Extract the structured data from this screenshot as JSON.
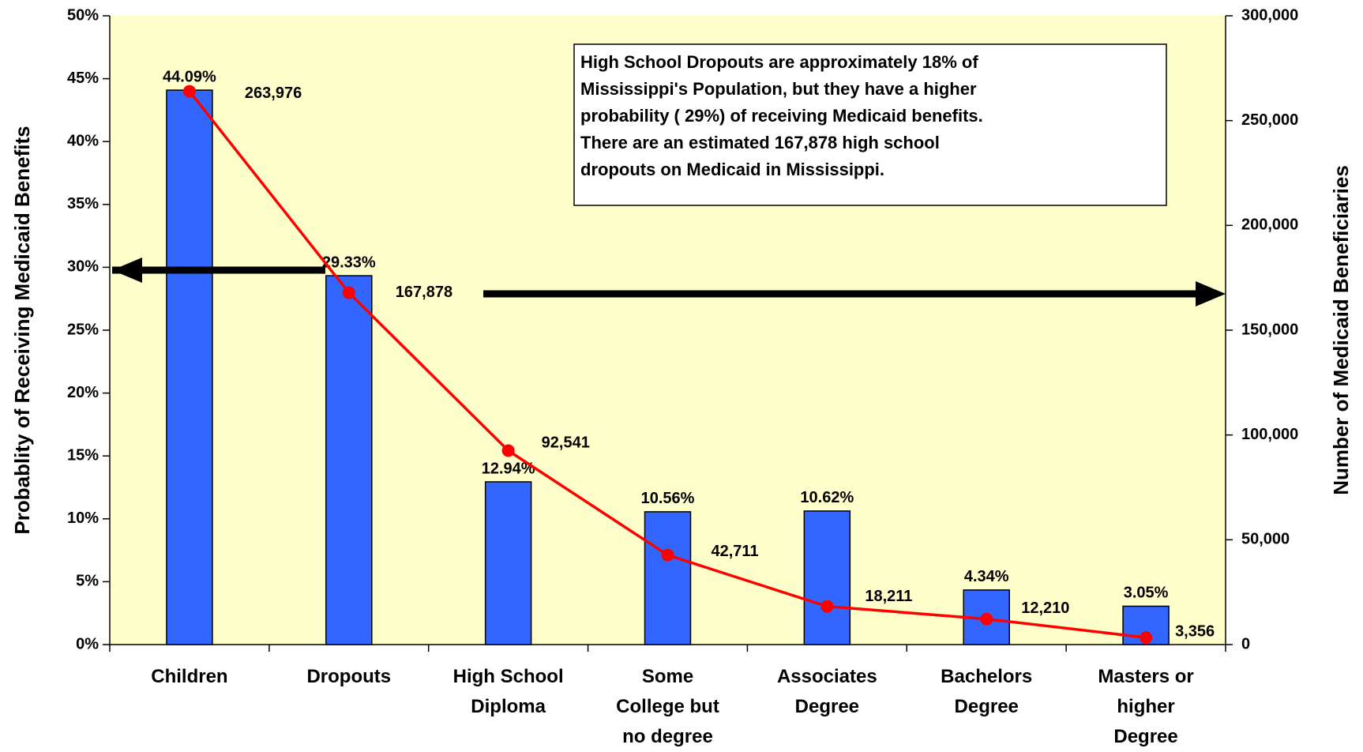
{
  "chart_data": {
    "type": "bar",
    "y_label": "Probablity of Receiving Medicaid Benefits",
    "y2_label": "Number of Medicaid Beneficiaries",
    "annotation": [
      "High School Dropouts are approximately 18% of",
      "Mississippi's Population, but they have a higher",
      "probability ( 29%) of receiving Medicaid benefits.",
      "There are an estimated 167,878 high school",
      "dropouts on Medicaid in Mississippi."
    ],
    "categories": [
      "Children",
      "Dropouts",
      "High School Diploma",
      "Some College but no degree",
      "Associates Degree",
      "Bachelors Degree",
      "Masters or higher Degree"
    ],
    "series": [
      {
        "type": "bar",
        "color": "#3366ff",
        "values": [
          44.09,
          29.33,
          12.94,
          10.56,
          10.62,
          4.34,
          3.05
        ],
        "value_labels": [
          "44.09%",
          "29.33%",
          "12.94%",
          "10.56%",
          "10.62%",
          "4.34%",
          "3.05%"
        ]
      },
      {
        "type": "line",
        "axis": "y2",
        "color": "#ff0000",
        "values": [
          263976,
          167878,
          92541,
          42711,
          18211,
          12210,
          3356
        ],
        "value_labels": [
          "263,976",
          "167,878",
          "92,541",
          "42,711",
          "18,211",
          "12,210",
          "3,356"
        ]
      }
    ],
    "ylim": [
      0,
      50
    ],
    "yticks": [
      {
        "value": 0,
        "label": "0%"
      },
      {
        "value": 5,
        "label": "5%"
      },
      {
        "value": 10,
        "label": "10%"
      },
      {
        "value": 15,
        "label": "15%"
      },
      {
        "value": 20,
        "label": "20%"
      },
      {
        "value": 25,
        "label": "25%"
      },
      {
        "value": 30,
        "label": "30%"
      },
      {
        "value": 35,
        "label": "35%"
      },
      {
        "value": 40,
        "label": "40%"
      },
      {
        "value": 45,
        "label": "45%"
      },
      {
        "value": 50,
        "label": "50%"
      }
    ],
    "y2lim": [
      0,
      300000
    ],
    "y2ticks": [
      0,
      {
        "value": 50000,
        "label": "50,000"
      },
      {
        "value": 100000,
        "label": "100,000"
      },
      {
        "value": 150000,
        "label": "150,000"
      },
      {
        "value": 200000,
        "label": "200,000"
      },
      {
        "value": 250000,
        "label": "250,000"
      },
      {
        "value": 300000,
        "label": "300,000"
      }
    ],
    "background": "#ffffcc"
  }
}
